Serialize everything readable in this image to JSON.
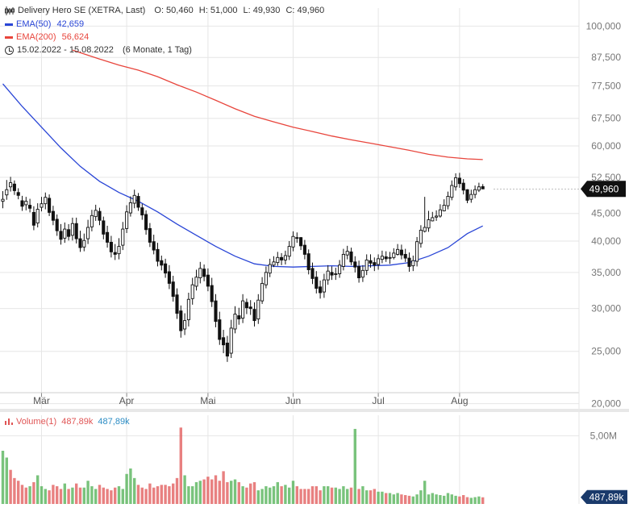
{
  "header": {
    "instrument": "Delivery Hero SE (XETRA, Last)",
    "open": "O: 50,460",
    "high": "H: 51,000",
    "low": "L: 49,930",
    "close": "C: 49,960",
    "ema50_label": "EMA(50)",
    "ema50_value": "42,659",
    "ema200_label": "EMA(200)",
    "ema200_value": "56,624",
    "range": "15.02.2022 - 15.08.2022",
    "range_detail": "(6 Monate, 1 Tag)"
  },
  "volume_legend": {
    "label": "Volume(1)",
    "value_red": "487,89k",
    "value_blue": "487,89k"
  },
  "colors": {
    "ema50": "#2945d6",
    "ema200": "#e8453c",
    "up": "#4caf50",
    "down": "#e05555",
    "candle": "#111111",
    "price_badge": "#111111",
    "volume_badge": "#1a3a6b",
    "grid": "#e6e6e6"
  },
  "chart_data": [
    {
      "type": "candlestick",
      "scale": "log",
      "ylim": [
        19500,
        108000
      ],
      "y_ticks": [
        {
          "value": 100000,
          "label": "100,000"
        },
        {
          "value": 87500,
          "label": "87,500"
        },
        {
          "value": 77500,
          "label": "77,500"
        },
        {
          "value": 67500,
          "label": "67,500"
        },
        {
          "value": 60000,
          "label": "60,000"
        },
        {
          "value": 52500,
          "label": "52,500"
        },
        {
          "value": 45000,
          "label": "45,000"
        },
        {
          "value": 40000,
          "label": "40,000"
        },
        {
          "value": 35000,
          "label": "35,000"
        },
        {
          "value": 30000,
          "label": "30,000"
        },
        {
          "value": 25000,
          "label": "25,000"
        },
        {
          "value": 20000,
          "label": "20,000"
        }
      ],
      "x_ticks": [
        {
          "index": 10,
          "label": "Mär"
        },
        {
          "index": 32,
          "label": "Apr"
        },
        {
          "index": 53,
          "label": "Mai"
        },
        {
          "index": 75,
          "label": "Jun"
        },
        {
          "index": 97,
          "label": "Jul"
        },
        {
          "index": 118,
          "label": "Aug"
        }
      ],
      "last_price_label": "49,960",
      "last_price": 49960,
      "close": [
        47800,
        49800,
        51300,
        49600,
        48600,
        46400,
        47400,
        46000,
        42800,
        45800,
        46900,
        48200,
        45200,
        43700,
        41800,
        40300,
        42100,
        40800,
        43100,
        40400,
        38900,
        40100,
        42400,
        44600,
        45600,
        43700,
        41200,
        39800,
        38200,
        37800,
        39100,
        42100,
        45300,
        47100,
        48600,
        46200,
        44700,
        42000,
        39800,
        38500,
        36700,
        36100,
        34900,
        33400,
        31600,
        29400,
        27300,
        28500,
        31200,
        33200,
        34300,
        35600,
        34400,
        33000,
        30900,
        28400,
        26300,
        25700,
        24500,
        27600,
        29300,
        28700,
        31000,
        30100,
        30000,
        28500,
        31100,
        33400,
        35000,
        36200,
        36600,
        37300,
        36900,
        37600,
        39100,
        40800,
        40500,
        39200,
        37800,
        35400,
        34100,
        32700,
        32100,
        33900,
        35200,
        34600,
        34800,
        36100,
        37800,
        38300,
        36600,
        35800,
        34200,
        35300,
        36900,
        36400,
        36100,
        37100,
        37500,
        37100,
        37300,
        38000,
        38600,
        37700,
        37200,
        35900,
        36800,
        39900,
        41900,
        42400,
        43800,
        44200,
        44500,
        45700,
        46600,
        48400,
        50700,
        52400,
        51100,
        49700,
        47600,
        48800,
        49800,
        50400,
        49960
      ],
      "open": [
        47400,
        48700,
        50400,
        51000,
        49200,
        47500,
        46700,
        46600,
        45200,
        43200,
        46200,
        46900,
        48000,
        45400,
        43900,
        41700,
        40500,
        42000,
        41000,
        43100,
        40400,
        39000,
        40400,
        42500,
        44400,
        45400,
        43600,
        41500,
        39800,
        38100,
        37900,
        39300,
        42200,
        45100,
        47000,
        48400,
        46100,
        44800,
        42200,
        39900,
        38600,
        36800,
        36300,
        35100,
        33600,
        31800,
        29700,
        27500,
        28600,
        31300,
        33000,
        34200,
        35500,
        34600,
        33100,
        31000,
        28600,
        26500,
        25900,
        24800,
        27500,
        29100,
        28800,
        30800,
        30200,
        29900,
        28700,
        31000,
        33200,
        34900,
        36100,
        36500,
        37300,
        36900,
        37500,
        39000,
        40600,
        40600,
        39300,
        37900,
        35600,
        34300,
        32900,
        32200,
        33900,
        35000,
        34700,
        34800,
        35900,
        37700,
        38200,
        36600,
        35900,
        34300,
        35300,
        36800,
        36500,
        36200,
        37000,
        37400,
        37200,
        37300,
        37800,
        38500,
        37800,
        37200,
        36000,
        36700,
        39600,
        41700,
        42300,
        43600,
        44300,
        44500,
        45500,
        46500,
        48200,
        50400,
        52300,
        51200,
        49800,
        47800,
        48800,
        49700,
        50460
      ],
      "high": [
        49500,
        51900,
        52600,
        51800,
        50100,
        48500,
        48300,
        47900,
        46400,
        47000,
        48300,
        49200,
        48800,
        46500,
        44800,
        43000,
        43300,
        43000,
        44200,
        44200,
        41800,
        41300,
        43800,
        45700,
        46700,
        46100,
        44400,
        42700,
        40900,
        39500,
        40500,
        43400,
        46600,
        48400,
        49800,
        49100,
        46900,
        45600,
        43200,
        41100,
        39700,
        37600,
        37100,
        36100,
        34500,
        32700,
        30400,
        29400,
        32100,
        34200,
        35400,
        36600,
        36200,
        35600,
        34200,
        31900,
        29600,
        27400,
        26700,
        28600,
        30300,
        30100,
        31900,
        31300,
        31100,
        30800,
        31900,
        34300,
        35900,
        37100,
        37500,
        38200,
        38000,
        38400,
        40000,
        41700,
        41500,
        40700,
        40200,
        38600,
        36500,
        35200,
        33800,
        34800,
        36100,
        35900,
        35700,
        36900,
        38700,
        39200,
        38900,
        37500,
        36800,
        36100,
        37800,
        37800,
        37300,
        37800,
        38400,
        38300,
        38200,
        38800,
        39500,
        39400,
        38700,
        38100,
        37600,
        40700,
        42800,
        48300,
        45500,
        45300,
        45600,
        46800,
        47800,
        49400,
        51800,
        53400,
        53500,
        52100,
        49900,
        49800,
        50700,
        51300,
        51000
      ],
      "low": [
        46000,
        47700,
        49400,
        48700,
        47800,
        45500,
        45600,
        45200,
        41900,
        42400,
        45400,
        45800,
        44500,
        42800,
        40900,
        39400,
        39700,
        40100,
        40100,
        39600,
        38200,
        38300,
        39500,
        41700,
        43600,
        42800,
        40300,
        38900,
        37300,
        36900,
        37000,
        38500,
        41400,
        44400,
        46000,
        45500,
        43800,
        41100,
        39000,
        37800,
        35900,
        35300,
        34200,
        32600,
        30900,
        28700,
        26500,
        26800,
        27800,
        30500,
        32400,
        33400,
        33700,
        32300,
        30200,
        27700,
        25700,
        24800,
        23900,
        24300,
        27000,
        28000,
        28200,
        29300,
        29200,
        27800,
        28100,
        30600,
        32700,
        34300,
        35800,
        36000,
        36100,
        36200,
        36900,
        38300,
        39700,
        38500,
        37000,
        34700,
        33300,
        32000,
        31300,
        31400,
        33200,
        33900,
        33900,
        34200,
        35300,
        37000,
        36100,
        35000,
        33500,
        33600,
        34600,
        35700,
        35200,
        35400,
        36400,
        36600,
        36300,
        37000,
        37600,
        37000,
        36600,
        35100,
        35200,
        35900,
        38900,
        41500,
        41600,
        43500,
        43600,
        44200,
        45400,
        45800,
        47600,
        49600,
        50200,
        48800,
        47000,
        47100,
        48000,
        49300,
        49930
      ]
    },
    {
      "type": "line",
      "name": "EMA(50)",
      "index": [
        0,
        5,
        10,
        15,
        20,
        25,
        30,
        35,
        40,
        45,
        50,
        55,
        60,
        65,
        70,
        75,
        80,
        85,
        90,
        95,
        100,
        105,
        110,
        115,
        120,
        124
      ],
      "values": [
        78200,
        71000,
        65000,
        59500,
        55000,
        51600,
        49200,
        47400,
        45300,
        43000,
        41000,
        39100,
        37500,
        36300,
        35900,
        35800,
        35900,
        36000,
        35900,
        36000,
        36100,
        36500,
        37500,
        38900,
        41300,
        42659
      ]
    },
    {
      "type": "line",
      "name": "EMA(200)",
      "index": [
        18,
        25,
        30,
        35,
        40,
        45,
        50,
        55,
        60,
        65,
        70,
        75,
        80,
        85,
        90,
        95,
        100,
        105,
        110,
        115,
        120,
        124
      ],
      "values": [
        90300,
        86900,
        84700,
        82900,
        80600,
        77900,
        75500,
        72900,
        70300,
        68100,
        66500,
        65000,
        63800,
        62600,
        61600,
        60700,
        59800,
        58900,
        57900,
        57200,
        56800,
        56624
      ]
    },
    {
      "type": "bar",
      "name": "Volume(1)",
      "ylim": [
        0,
        6500000
      ],
      "y_ticks": [
        {
          "value": 5000000,
          "label": "5,00M"
        }
      ],
      "last_value_label": "487,89k",
      "values": [
        3900000,
        3400000,
        2500000,
        1900000,
        1700000,
        1400000,
        1200000,
        1300000,
        1600000,
        2100000,
        1300000,
        1100000,
        1000000,
        1400000,
        1300000,
        1100000,
        1500000,
        1100000,
        1200000,
        1500000,
        1200000,
        1200000,
        1700000,
        1300000,
        1100000,
        1400000,
        1200000,
        1100000,
        1000000,
        1200000,
        1300000,
        1100000,
        2200000,
        2600000,
        1900000,
        1400000,
        1200000,
        1100000,
        1500000,
        1200000,
        1300000,
        1400000,
        1400000,
        1300000,
        1500000,
        1900000,
        5600000,
        2100000,
        1300000,
        1300000,
        1600000,
        1700000,
        1800000,
        2000000,
        1800000,
        2100000,
        1700000,
        2400000,
        1600000,
        1700000,
        1800000,
        1600000,
        1300000,
        1200000,
        1500000,
        1600000,
        1000000,
        1100000,
        1300000,
        1200000,
        1300000,
        1600000,
        1300000,
        1400000,
        1200000,
        1700000,
        1300000,
        1100000,
        1100000,
        1100000,
        1300000,
        1300000,
        1000000,
        1300000,
        1300000,
        1200000,
        1200000,
        1100000,
        1300000,
        1100000,
        1200000,
        5500000,
        1100000,
        1300000,
        1000000,
        1000000,
        1100000,
        900000,
        900000,
        800000,
        800000,
        700000,
        800000,
        700000,
        650000,
        600000,
        550000,
        700000,
        1000000,
        1700000,
        700000,
        800000,
        700000,
        650000,
        600000,
        800000,
        700000,
        600000,
        550000,
        650000,
        500000,
        450000,
        500000,
        550000,
        487890
      ],
      "direction": [
        "up",
        "up",
        "down",
        "down",
        "down",
        "down",
        "down",
        "up",
        "down",
        "up",
        "up",
        "up",
        "down",
        "down",
        "down",
        "down",
        "up",
        "down",
        "up",
        "down",
        "down",
        "up",
        "up",
        "up",
        "up",
        "down",
        "down",
        "down",
        "down",
        "down",
        "up",
        "up",
        "up",
        "up",
        "up",
        "down",
        "down",
        "down",
        "down",
        "down",
        "down",
        "down",
        "down",
        "down",
        "down",
        "down",
        "down",
        "up",
        "up",
        "up",
        "up",
        "up",
        "down",
        "down",
        "down",
        "down",
        "down",
        "down",
        "down",
        "up",
        "up",
        "down",
        "up",
        "down",
        "down",
        "down",
        "up",
        "up",
        "up",
        "up",
        "up",
        "up",
        "down",
        "up",
        "up",
        "up",
        "down",
        "down",
        "down",
        "down",
        "down",
        "down",
        "down",
        "up",
        "up",
        "down",
        "up",
        "up",
        "up",
        "up",
        "down",
        "up",
        "down",
        "up",
        "up",
        "down",
        "down",
        "up",
        "up",
        "down",
        "up",
        "up",
        "up",
        "down",
        "down",
        "down",
        "up",
        "up",
        "up",
        "up",
        "up",
        "up",
        "up",
        "up",
        "up",
        "up",
        "up",
        "up",
        "down",
        "down",
        "down",
        "up",
        "up",
        "up",
        "down"
      ]
    }
  ]
}
